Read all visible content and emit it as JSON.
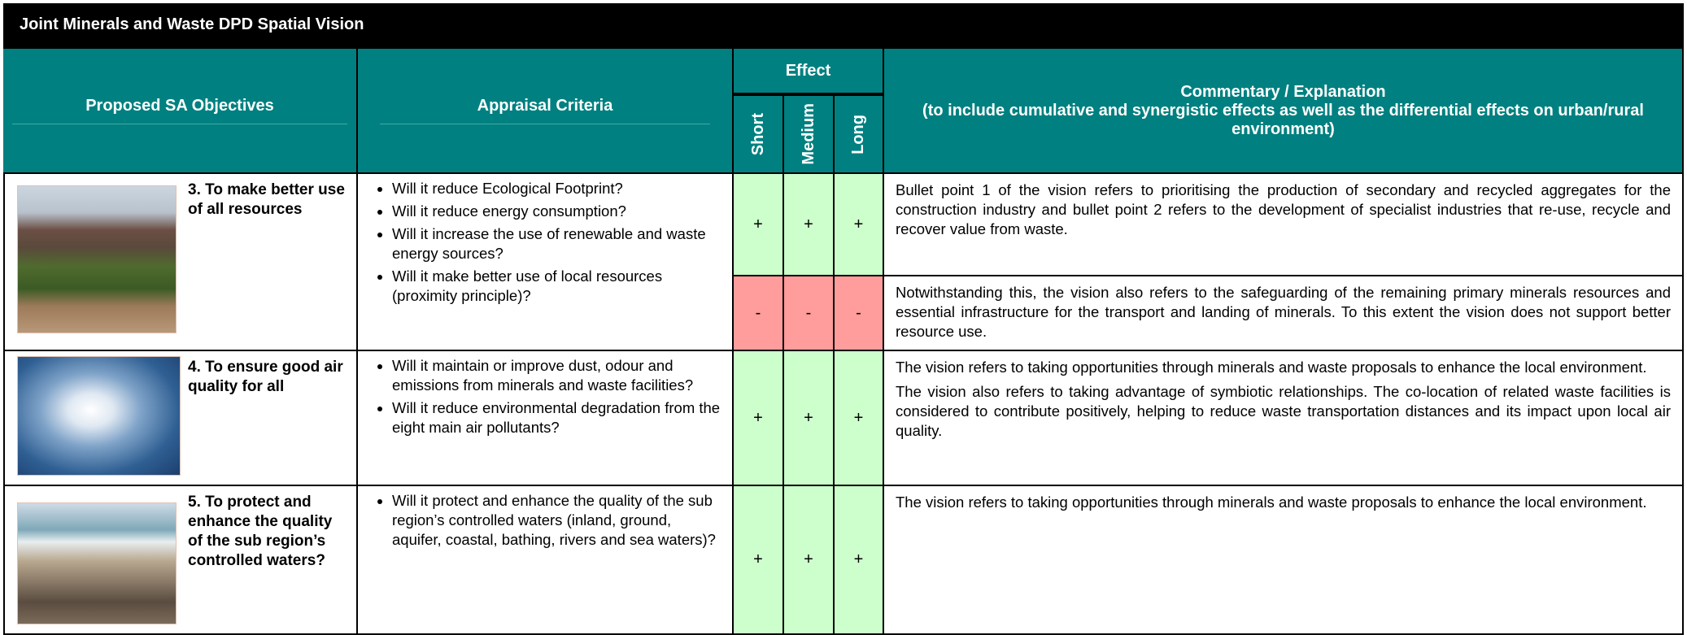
{
  "header": {
    "title": "Joint Minerals and Waste DPD Spatial Vision"
  },
  "table": {
    "columns": {
      "objectives": "Proposed SA Objectives",
      "criteria": "Appraisal Criteria",
      "effect": "Effect",
      "terms": [
        "Short",
        "Medium",
        "Long"
      ],
      "commentary": [
        "Commentary / Explanation",
        "(to include cumulative and synergistic effects as well as the differential effects on urban/rural environment)"
      ]
    },
    "rows": [
      {
        "objective": "3. To make better use of all resources",
        "criteria": [
          "Will it reduce Ecological Footprint?",
          "Will it reduce energy consumption?",
          "Will it increase the use of renewable and waste energy sources?",
          "Will it make better use of local resources (proximity principle)?"
        ],
        "effects": [
          {
            "symbols": [
              "+",
              "+",
              "+"
            ],
            "commentary": [
              "Bullet point 1 of the vision refers to prioritising the production of secondary and recycled aggregates for the construction industry and bullet point 2 refers to the development of specialist industries that re-use, recycle and recover value from waste."
            ]
          },
          {
            "symbols": [
              "-",
              "-",
              "-"
            ],
            "commentary": [
              "Notwithstanding this, the vision also refers to the safeguarding of the remaining primary minerals resources and essential infrastructure for the transport and landing of minerals. To this extent the vision does not support better resource use."
            ]
          }
        ]
      },
      {
        "objective": "4. To ensure good air quality for all",
        "criteria": [
          "Will it maintain or improve dust, odour and emissions from minerals and waste facilities?",
          "Will it reduce environmental degradation from the eight main air pollutants?"
        ],
        "effects": [
          {
            "symbols": [
              "+",
              "+",
              "+"
            ],
            "commentary": [
              "The vision refers to taking opportunities through minerals and waste proposals to enhance the local environment.",
              "The vision also refers to taking advantage of symbiotic relationships. The co-location of related waste facilities is considered to contribute positively, helping to reduce waste transportation distances and its impact upon local air quality."
            ]
          }
        ]
      },
      {
        "objective": "5. To protect and enhance the quality of the sub region’s controlled waters?",
        "criteria": [
          "Will it protect and enhance the quality of the sub region’s controlled waters (inland, ground, aquifer, coastal, bathing, rivers and sea waters)?"
        ],
        "effects": [
          {
            "symbols": [
              "+",
              "+",
              "+"
            ],
            "commentary": [
              "The vision refers to taking opportunities through minerals and waste proposals to enhance the local environment."
            ]
          }
        ]
      }
    ]
  }
}
